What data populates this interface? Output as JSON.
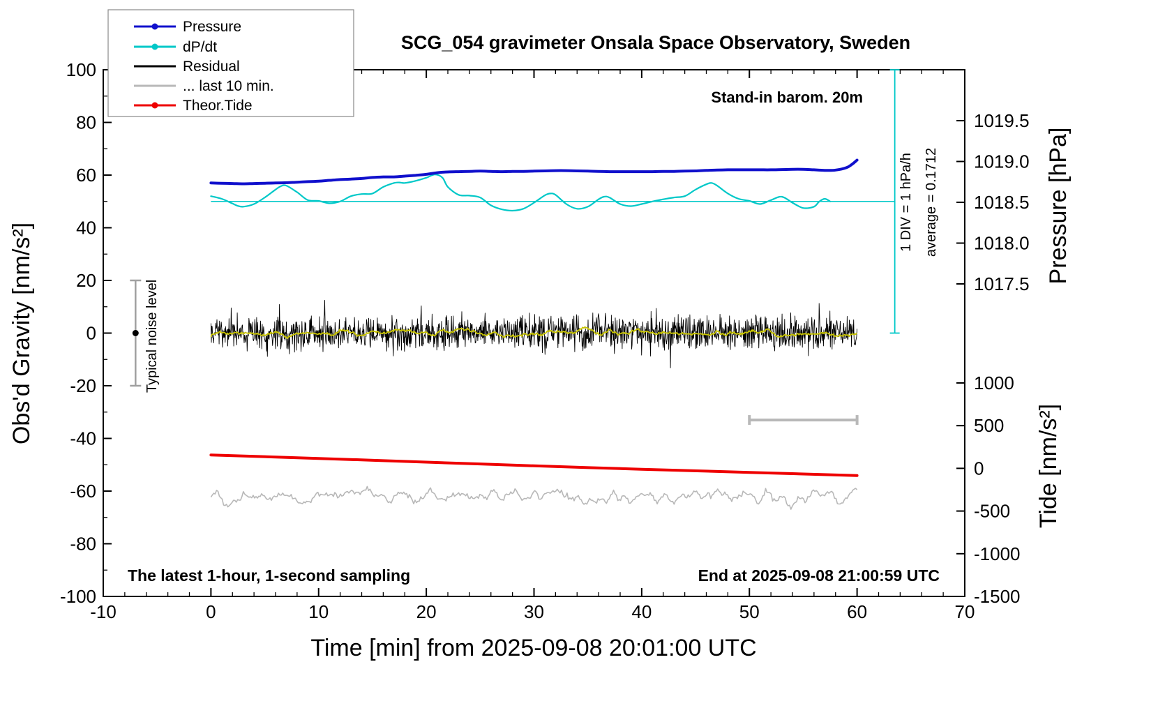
{
  "title": "SCG_054 gravimeter Onsala Space Observatory, Sweden",
  "annotations": {
    "barom": "Stand-in barom. 20m",
    "div_scale": "1 DIV = 1 hPa/h",
    "average": "average = 0.1712",
    "noise_level": "Typical noise level",
    "sampling": "The latest 1-hour, 1-second sampling",
    "end_time": "End at 2025-09-08 21:00:59 UTC"
  },
  "axes": {
    "x_label": "Time [min] from 2025-09-08 20:01:00 UTC",
    "y_left_label": "Obs'd Gravity [nm/s²]",
    "y_right_pressure_label": "Pressure [hPa]",
    "y_right_tide_label": "Tide [nm/s²]",
    "x_ticks": [
      -10,
      0,
      10,
      20,
      30,
      40,
      50,
      60,
      70
    ],
    "x_minor_step": 2,
    "y_ticks": [
      -100,
      -80,
      -60,
      -40,
      -20,
      0,
      20,
      40,
      60,
      80,
      100
    ],
    "y_minor_step": 10,
    "pressure_ticks": [
      "1019.5",
      "1019.0",
      "1018.5",
      "1018.0",
      "1017.5"
    ],
    "tide_ticks": [
      "1000",
      "500",
      "0",
      "-500",
      "-1000",
      "-1500"
    ]
  },
  "legend": {
    "items": [
      {
        "label": "Pressure",
        "color": "#1010cc",
        "marker": "dot-line"
      },
      {
        "label": "dP/dt",
        "color": "#00c8c8",
        "marker": "dot-line"
      },
      {
        "label": "Residual",
        "color": "#000000",
        "marker": "line"
      },
      {
        "label": "... last 10 min.",
        "color": "#b8b8b8",
        "marker": "line"
      },
      {
        "label": "Theor.Tide",
        "color": "#ee0000",
        "marker": "dot-line"
      }
    ]
  },
  "chart_data": {
    "type": "line",
    "title": "SCG_054 gravimeter Onsala Space Observatory, Sweden",
    "xlabel": "Time [min] from 2025-09-08 20:01:00 UTC",
    "ylabel_left": "Obs'd Gravity [nm/s²]",
    "x_range": [
      -10,
      70
    ],
    "y_range": [
      -100,
      100
    ],
    "pressure_axis": {
      "ticks": [
        1019.5,
        1019.0,
        1018.5,
        1018.0,
        1017.5
      ],
      "unit": "hPa"
    },
    "tide_axis": {
      "ticks": [
        1000,
        500,
        0,
        -500,
        -1000,
        -1500
      ],
      "unit": "nm/s²"
    },
    "series": [
      {
        "name": "... last 10 min.",
        "color": "#b8b8b8",
        "width": 1.6,
        "gen": {
          "x0": 0,
          "x1": 60,
          "n": 460,
          "baseline": -62,
          "sigma": 3.0,
          "seed": 33,
          "smooth": 5
        }
      },
      {
        "name": "Theor.Tide",
        "color": "#ee0000",
        "width": 4,
        "curve": true,
        "points": [
          [
            0,
            -46.3
          ],
          [
            10,
            -47.6
          ],
          [
            20,
            -49.0
          ],
          [
            30,
            -50.4
          ],
          [
            40,
            -51.7
          ],
          [
            50,
            -52.9
          ],
          [
            60,
            -54.1
          ]
        ]
      },
      {
        "name": "Residual",
        "color": "#000000",
        "width": 0.9,
        "gen": {
          "x0": 0,
          "x1": 60,
          "n": 1500,
          "baseline": 0,
          "sigma": 3.1,
          "seed": 7,
          "spike_prob": 0.012,
          "spike_mag": 6
        }
      },
      {
        "name": "Residual filtered",
        "color": "#c8c400",
        "width": 1.8,
        "gen": {
          "x0": 0,
          "x1": 60,
          "n": 900,
          "baseline": 0,
          "sigma": 2.4,
          "seed": 19,
          "smooth": 13
        }
      },
      {
        "name": "dP/dt",
        "color": "#00c8c8",
        "width": 2.2,
        "curve": true,
        "points": [
          [
            0,
            52.0
          ],
          [
            1,
            51.0
          ],
          [
            2,
            49.2
          ],
          [
            2.5,
            48.3
          ],
          [
            3,
            48.0
          ],
          [
            4,
            49.0
          ],
          [
            5,
            51.5
          ],
          [
            6,
            54.5
          ],
          [
            6.5,
            55.8
          ],
          [
            7,
            56.0
          ],
          [
            8,
            53.5
          ],
          [
            9,
            50.5
          ],
          [
            10,
            50.2
          ],
          [
            11,
            49.3
          ],
          [
            12,
            50.0
          ],
          [
            13,
            52.0
          ],
          [
            14,
            52.8
          ],
          [
            15,
            53.0
          ],
          [
            16,
            55.5
          ],
          [
            17,
            57.0
          ],
          [
            17.5,
            57.2
          ],
          [
            18,
            57.0
          ],
          [
            19,
            57.8
          ],
          [
            20,
            59.0
          ],
          [
            20.8,
            60.2
          ],
          [
            21.5,
            59.0
          ],
          [
            22,
            55.5
          ],
          [
            23,
            52.5
          ],
          [
            24,
            52.2
          ],
          [
            25,
            51.5
          ],
          [
            26,
            48.5
          ],
          [
            27,
            47.0
          ],
          [
            28,
            46.5
          ],
          [
            29,
            47.2
          ],
          [
            30,
            49.5
          ],
          [
            31,
            52.3
          ],
          [
            31.5,
            53.0
          ],
          [
            32,
            52.5
          ],
          [
            33,
            49.0
          ],
          [
            34,
            47.2
          ],
          [
            35,
            48.0
          ],
          [
            36,
            50.8
          ],
          [
            36.5,
            51.8
          ],
          [
            37,
            51.5
          ],
          [
            38,
            49.0
          ],
          [
            39,
            48.2
          ],
          [
            40,
            49.0
          ],
          [
            41,
            50.0
          ],
          [
            42,
            50.8
          ],
          [
            43,
            51.5
          ],
          [
            44,
            52.0
          ],
          [
            45,
            54.5
          ],
          [
            46,
            56.5
          ],
          [
            46.5,
            57.0
          ],
          [
            47,
            56.0
          ],
          [
            48,
            53.0
          ],
          [
            49,
            51.0
          ],
          [
            50,
            50.2
          ],
          [
            51,
            49.0
          ],
          [
            52,
            50.5
          ],
          [
            53,
            51.8
          ],
          [
            54,
            49.5
          ],
          [
            55,
            47.5
          ],
          [
            56,
            48.0
          ],
          [
            56.5,
            50.0
          ],
          [
            57,
            51.0
          ],
          [
            57.5,
            50.0
          ]
        ]
      },
      {
        "name": "Pressure",
        "color": "#1010cc",
        "width": 4,
        "curve": true,
        "points": [
          [
            0,
            57.0
          ],
          [
            1,
            56.9
          ],
          [
            2,
            56.8
          ],
          [
            3,
            56.7
          ],
          [
            4,
            56.8
          ],
          [
            5,
            56.9
          ],
          [
            6,
            57.0
          ],
          [
            7,
            57.1
          ],
          [
            8,
            57.3
          ],
          [
            9,
            57.5
          ],
          [
            10,
            57.7
          ],
          [
            11,
            58.0
          ],
          [
            12,
            58.3
          ],
          [
            13,
            58.5
          ],
          [
            14,
            58.7
          ],
          [
            15,
            59.1
          ],
          [
            16,
            59.3
          ],
          [
            17,
            59.3
          ],
          [
            18,
            59.6
          ],
          [
            19,
            59.9
          ],
          [
            20,
            60.3
          ],
          [
            21,
            60.9
          ],
          [
            22,
            61.2
          ],
          [
            23,
            61.3
          ],
          [
            24,
            61.4
          ],
          [
            25,
            61.5
          ],
          [
            26,
            61.4
          ],
          [
            27,
            61.3
          ],
          [
            28,
            61.4
          ],
          [
            29,
            61.4
          ],
          [
            30,
            61.5
          ],
          [
            31,
            61.6
          ],
          [
            32,
            61.7
          ],
          [
            33,
            61.7
          ],
          [
            34,
            61.6
          ],
          [
            35,
            61.5
          ],
          [
            36,
            61.4
          ],
          [
            37,
            61.3
          ],
          [
            38,
            61.3
          ],
          [
            39,
            61.3
          ],
          [
            40,
            61.3
          ],
          [
            41,
            61.3
          ],
          [
            42,
            61.4
          ],
          [
            43,
            61.4
          ],
          [
            44,
            61.5
          ],
          [
            45,
            61.6
          ],
          [
            46,
            61.8
          ],
          [
            47,
            61.9
          ],
          [
            48,
            62.0
          ],
          [
            49,
            62.0
          ],
          [
            50,
            62.0
          ],
          [
            51,
            62.0
          ],
          [
            52,
            62.0
          ],
          [
            53,
            62.1
          ],
          [
            54,
            62.2
          ],
          [
            55,
            62.2
          ],
          [
            56,
            62.0
          ],
          [
            57,
            61.8
          ],
          [
            58,
            61.9
          ],
          [
            59,
            62.8
          ],
          [
            59.5,
            64.0
          ],
          [
            60,
            65.7
          ]
        ]
      }
    ],
    "reference_marks": {
      "dpdt_baseline": {
        "y": 50,
        "x0": 0,
        "x1": 63.5,
        "color": "#00c8c8"
      },
      "div_scale_bar": {
        "x": 63.5,
        "y0": 0,
        "y1": 100,
        "color": "#00c8c8"
      },
      "last10_window_bar": {
        "y": -33,
        "x0": 50,
        "x1": 60,
        "color": "#b8b8b8"
      },
      "noise_level_bar": {
        "x": -7,
        "y0": -20,
        "y1": 20,
        "dot_y": 0,
        "color": "#a0a0a0",
        "dot_color": "#000000"
      }
    }
  }
}
